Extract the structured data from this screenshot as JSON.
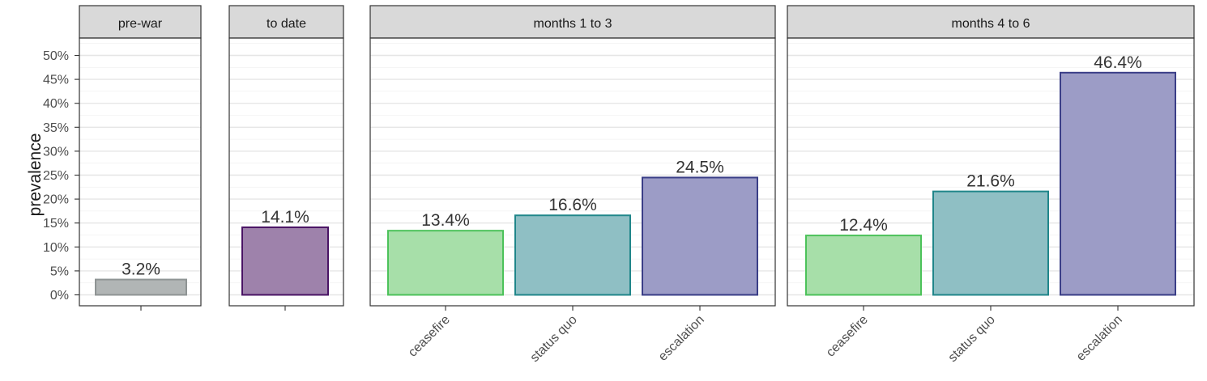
{
  "chart_data": {
    "type": "bar",
    "ylabel": "prevalence",
    "ylim": [
      0,
      0.53
    ],
    "yticks": [
      "0%",
      "5%",
      "10%",
      "15%",
      "20%",
      "25%",
      "30%",
      "35%",
      "40%",
      "45%",
      "50%"
    ],
    "yticks_values": [
      0,
      0.05,
      0.1,
      0.15,
      0.2,
      0.25,
      0.3,
      0.35,
      0.4,
      0.45,
      0.5
    ],
    "grid": true,
    "legend": "none",
    "panels": [
      {
        "strip": "pre-war",
        "bars": [
          {
            "category": "",
            "value": 0.032,
            "label": "3.2%",
            "fill": "#b1b5b5",
            "stroke": "#8f9494"
          }
        ]
      },
      {
        "strip": "to date",
        "bars": [
          {
            "category": "",
            "value": 0.141,
            "label": "14.1%",
            "fill": "#9e82ab",
            "stroke": "#4a1465"
          }
        ]
      },
      {
        "strip": "months 1 to 3",
        "bars": [
          {
            "category": "ceasefire",
            "value": 0.134,
            "label": "13.4%",
            "fill": "#a7dfa9",
            "stroke": "#4cc25a"
          },
          {
            "category": "status quo",
            "value": 0.166,
            "label": "16.6%",
            "fill": "#8fbfc4",
            "stroke": "#20868a"
          },
          {
            "category": "escalation",
            "value": 0.245,
            "label": "24.5%",
            "fill": "#9c9cc6",
            "stroke": "#3a3e87"
          }
        ]
      },
      {
        "strip": "months 4 to 6",
        "bars": [
          {
            "category": "ceasefire",
            "value": 0.124,
            "label": "12.4%",
            "fill": "#a7dfa9",
            "stroke": "#4cc25a"
          },
          {
            "category": "status quo",
            "value": 0.216,
            "label": "21.6%",
            "fill": "#8fbfc4",
            "stroke": "#20868a"
          },
          {
            "category": "escalation",
            "value": 0.464,
            "label": "46.4%",
            "fill": "#9c9cc6",
            "stroke": "#3a3e87"
          }
        ]
      }
    ]
  }
}
